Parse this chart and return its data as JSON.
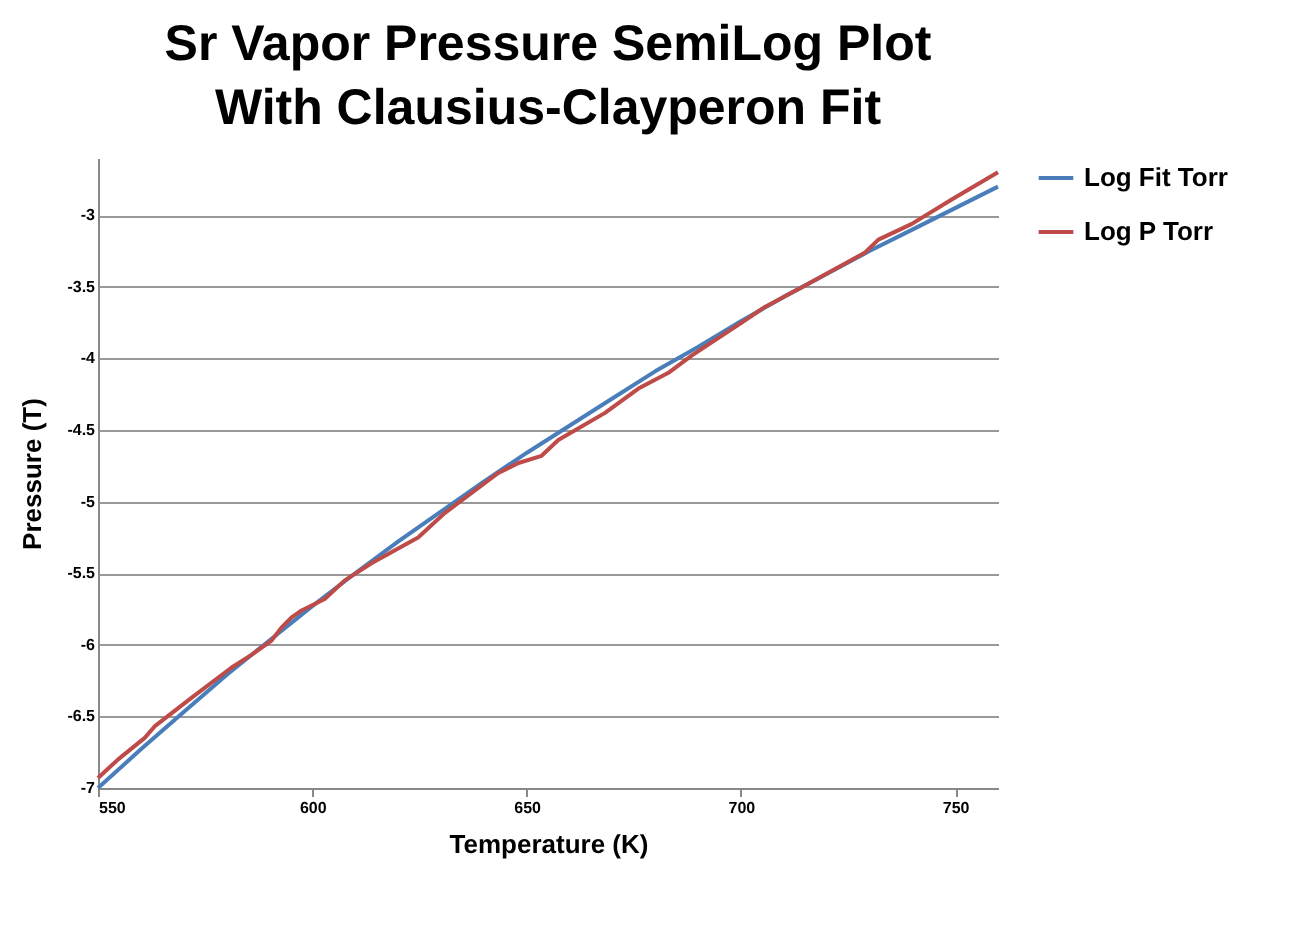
{
  "chart_data": {
    "type": "line",
    "title": "Sr Vapor Pressure SemiLog Plot\nWith Clausius-Clayperon Fit",
    "xlabel": "Temperature (K)",
    "ylabel": "Pressure (T)",
    "xlim": [
      550,
      760
    ],
    "xticks": [
      550,
      600,
      650,
      700,
      750
    ],
    "ylim": [
      -7,
      -2.6
    ],
    "yticks": [
      -7,
      -6.5,
      -6,
      -5.5,
      -5,
      -4.5,
      -4,
      -3.5,
      -3
    ],
    "grid": "y",
    "legend": "right",
    "line_style": "solid",
    "series": [
      {
        "name": "Log Fit Torr",
        "color": "#4a7ebb",
        "x": [
          550,
          560,
          570,
          580,
          590,
          600,
          610,
          620,
          630,
          640,
          650,
          660,
          670,
          680,
          690,
          700,
          710,
          720,
          730,
          740,
          750,
          760
        ],
        "values": [
          -7.0,
          -6.73,
          -6.47,
          -6.21,
          -5.97,
          -5.73,
          -5.5,
          -5.28,
          -5.07,
          -4.86,
          -4.66,
          -4.47,
          -4.28,
          -4.09,
          -3.92,
          -3.74,
          -3.57,
          -3.41,
          -3.25,
          -3.1,
          -2.95,
          -2.8
        ]
      },
      {
        "name": "Log P Torr",
        "color": "#be4b48",
        "x": [
          550,
          554.7,
          560.9,
          563.2,
          571.8,
          581.1,
          585.8,
          590.5,
          592.8,
          595.1,
          597.5,
          602.9,
          607.6,
          613.8,
          624.7,
          630.9,
          643.4,
          648.1,
          653.5,
          657.4,
          668.3,
          676.1,
          683.1,
          688.5,
          700.2,
          705.6,
          715,
          729,
          732.1,
          739.9,
          749.2,
          760
        ],
        "values": [
          -6.93,
          -6.8,
          -6.65,
          -6.57,
          -6.37,
          -6.16,
          -6.07,
          -5.97,
          -5.88,
          -5.81,
          -5.76,
          -5.68,
          -5.55,
          -5.43,
          -5.25,
          -5.08,
          -4.8,
          -4.73,
          -4.68,
          -4.57,
          -4.38,
          -4.21,
          -4.1,
          -3.98,
          -3.75,
          -3.64,
          -3.49,
          -3.26,
          -3.17,
          -3.06,
          -2.89,
          -2.7
        ]
      }
    ]
  }
}
